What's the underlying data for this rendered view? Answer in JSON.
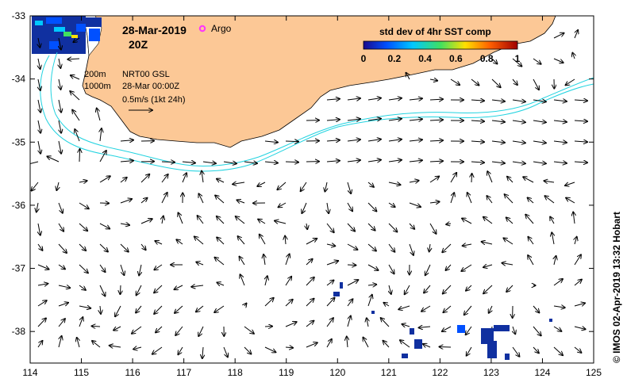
{
  "map": {
    "date": "28-Mar-2019",
    "time": "20Z",
    "argo_label": "Argo",
    "depth_200": "200m",
    "depth_1000": "1000m",
    "product": "NRT00 GSL",
    "product_time": "28-Mar 00:00Z",
    "scale_label": "0.5m/s (1kt 24h)",
    "credit": "© IMOS 02-Apr-2019 13:32 Hobart",
    "colorbar": {
      "title": "std dev of 4hr SST comp",
      "ticks": [
        "0",
        "0.2",
        "0.4",
        "0.6",
        "0.8",
        "1"
      ]
    },
    "x_ticks": [
      "114",
      "115",
      "116",
      "117",
      "118",
      "119",
      "120",
      "121",
      "122",
      "123",
      "124",
      "125"
    ],
    "y_ticks": [
      "-33",
      "-34",
      "-35",
      "-36",
      "-37",
      "-38"
    ],
    "colors": {
      "land": "#fcc896",
      "isobath": "#22d3e0",
      "argo": "#ff33ff",
      "sst_dark": "#1030a0"
    }
  }
}
